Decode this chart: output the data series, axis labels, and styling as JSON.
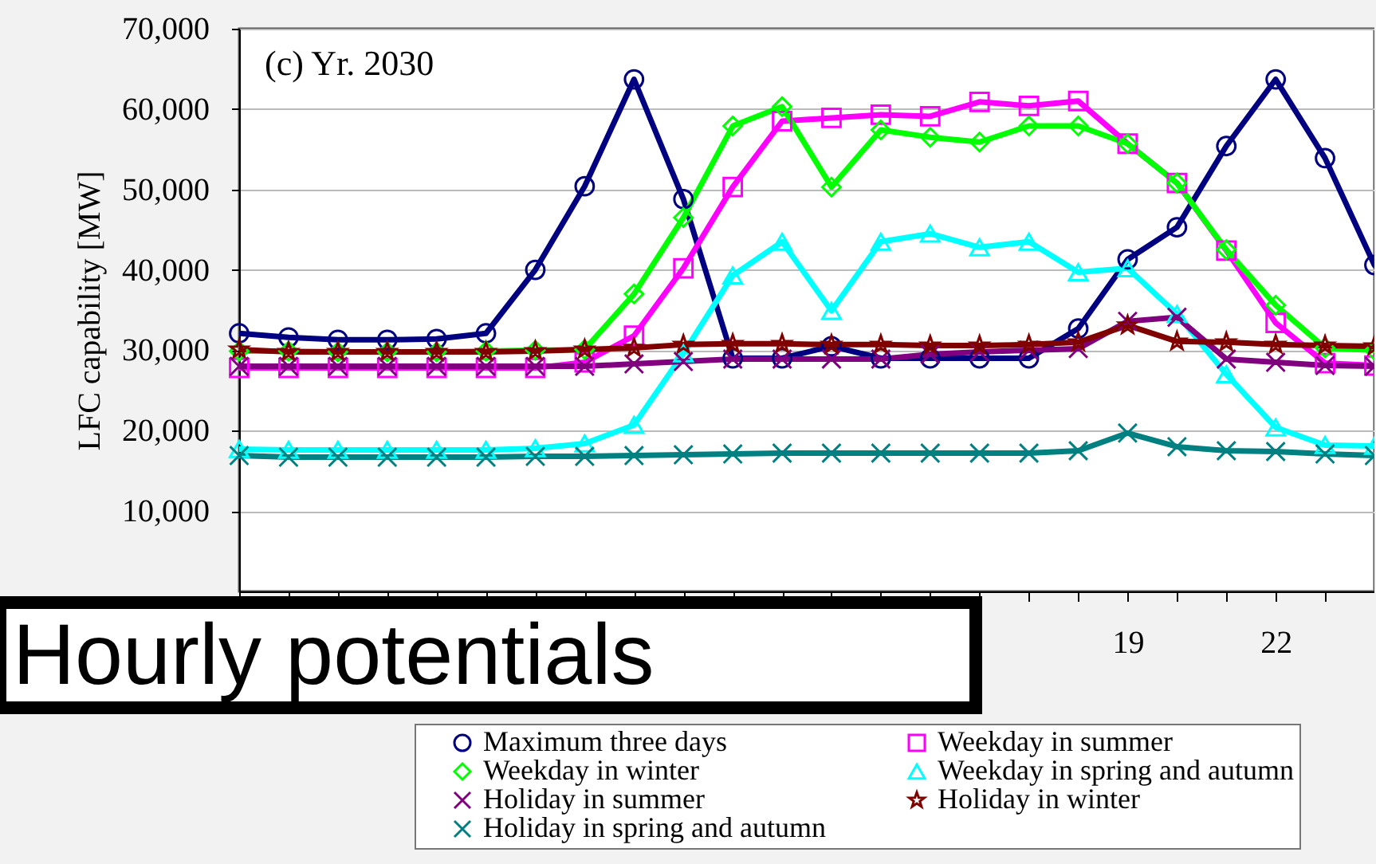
{
  "chart_data": {
    "type": "line",
    "title": "Hourly potentials",
    "ylabel": "LFC capability [MW]",
    "annotations": [
      "(c) Yr. 2030"
    ],
    "x": [
      1,
      2,
      3,
      4,
      5,
      6,
      7,
      8,
      9,
      10,
      11,
      12,
      13,
      14,
      15,
      16,
      17,
      18,
      19,
      20,
      21,
      22,
      23,
      24
    ],
    "xlim": [
      1,
      24
    ],
    "xticks": [
      {
        "value": 1,
        "label": null
      },
      {
        "value": 2,
        "label": null
      },
      {
        "value": 3,
        "label": null
      },
      {
        "value": 4,
        "label": null
      },
      {
        "value": 5,
        "label": null
      },
      {
        "value": 6,
        "label": null
      },
      {
        "value": 7,
        "label": null
      },
      {
        "value": 8,
        "label": null
      },
      {
        "value": 9,
        "label": null
      },
      {
        "value": 10,
        "label": null
      },
      {
        "value": 11,
        "label": null
      },
      {
        "value": 12,
        "label": null
      },
      {
        "value": 13,
        "label": null
      },
      {
        "value": 14,
        "label": null
      },
      {
        "value": 15,
        "label": null
      },
      {
        "value": 16,
        "label": null
      },
      {
        "value": 17,
        "label": null
      },
      {
        "value": 18,
        "label": null
      },
      19,
      {
        "value": 20,
        "label": null
      },
      {
        "value": 21,
        "label": null
      },
      22,
      {
        "value": 23,
        "label": null
      },
      {
        "value": 24,
        "label": null
      }
    ],
    "ylim": [
      0,
      70000
    ],
    "yticks": [
      {
        "value": 10000,
        "label": "10,000"
      },
      {
        "value": 20000,
        "label": "20,000"
      },
      {
        "value": 30000,
        "label": "30,000"
      },
      {
        "value": 40000,
        "label": "40,000"
      },
      {
        "value": 50000,
        "label": "50,000"
      },
      {
        "value": 60000,
        "label": "60,000"
      },
      {
        "value": 70000,
        "label": "70,000"
      }
    ],
    "grid": "y",
    "legend": "bottom",
    "series": [
      {
        "name": "Maximum three days",
        "color": "#000080",
        "marker": "circle",
        "values": [
          32100,
          31600,
          31300,
          31300,
          31400,
          32100,
          40000,
          50400,
          63700,
          48800,
          29000,
          29000,
          30500,
          29000,
          29000,
          29000,
          29000,
          32700,
          41300,
          45300,
          55400,
          63700,
          53900,
          40600
        ]
      },
      {
        "name": "Weekday in summer",
        "color": "#ff00ff",
        "marker": "square",
        "values": [
          27800,
          27800,
          27800,
          27800,
          27800,
          27800,
          27800,
          28500,
          31800,
          40200,
          50300,
          58500,
          58900,
          59300,
          59100,
          60900,
          60400,
          61000,
          55700,
          50800,
          42400,
          33400,
          28400,
          28100
        ]
      },
      {
        "name": "Weekday in winter",
        "color": "#00ff00",
        "marker": "diamond",
        "values": [
          29900,
          29900,
          29800,
          29800,
          29800,
          29900,
          30000,
          30100,
          37000,
          46500,
          57900,
          60300,
          50300,
          57400,
          56500,
          55900,
          57900,
          57900,
          55700,
          50800,
          42500,
          35600,
          30300,
          30000
        ]
      },
      {
        "name": "Weekday in spring and autumn",
        "color": "#00ffff",
        "marker": "triangle",
        "values": [
          17700,
          17600,
          17600,
          17600,
          17600,
          17600,
          17800,
          18400,
          20700,
          29600,
          39300,
          43500,
          34900,
          43500,
          44500,
          42800,
          43500,
          39700,
          40200,
          34500,
          27000,
          20400,
          18200,
          18100
        ]
      },
      {
        "name": "Holiday in summer",
        "color": "#800080",
        "marker": "cross",
        "values": [
          28000,
          28000,
          28000,
          28000,
          28000,
          28000,
          28000,
          28000,
          28300,
          28600,
          28900,
          28900,
          28900,
          28900,
          29500,
          29800,
          30000,
          30200,
          33600,
          34100,
          28900,
          28500,
          28100,
          28000
        ]
      },
      {
        "name": "Holiday in winter",
        "color": "#800000",
        "marker": "star",
        "values": [
          30100,
          29800,
          29800,
          29800,
          29800,
          29800,
          29900,
          30100,
          30300,
          30700,
          30800,
          30800,
          30700,
          30700,
          30600,
          30600,
          30700,
          31000,
          33100,
          31100,
          31000,
          30700,
          30600,
          30500
        ]
      },
      {
        "name": "Holiday in spring and autumn",
        "color": "#008080",
        "marker": "cross",
        "values": [
          16900,
          16700,
          16700,
          16700,
          16700,
          16700,
          16800,
          16800,
          16900,
          17000,
          17100,
          17200,
          17200,
          17200,
          17200,
          17200,
          17200,
          17500,
          19700,
          18000,
          17500,
          17400,
          17100,
          16900
        ]
      }
    ]
  }
}
